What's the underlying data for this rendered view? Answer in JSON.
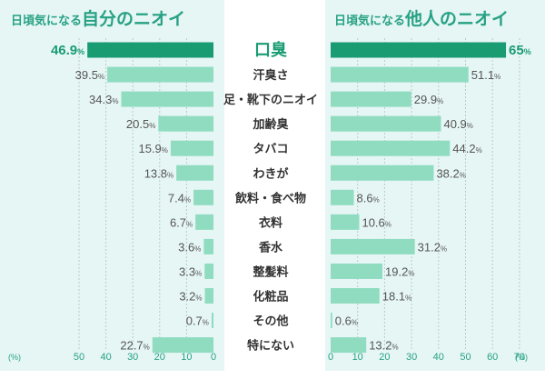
{
  "chart_data": [
    {
      "type": "bar",
      "orientation": "horizontal",
      "direction": "right-to-left",
      "title_prefix": "日頃気になる",
      "title_main": "自分のニオイ",
      "categories": [
        "口臭",
        "汗臭さ",
        "足・靴下のニオイ",
        "加齢臭",
        "タバコ",
        "わきが",
        "飲料・食べ物",
        "衣料",
        "香水",
        "整髪料",
        "化粧品",
        "その他",
        "特にない"
      ],
      "values": [
        46.9,
        39.5,
        34.3,
        20.5,
        15.9,
        13.8,
        7.4,
        6.7,
        3.6,
        3.3,
        3.2,
        0.7,
        22.7
      ],
      "value_suffix": "%",
      "xlim": [
        0,
        50
      ],
      "xticks": [
        "50",
        "40",
        "30",
        "20",
        "10",
        "0"
      ],
      "unit_label": "(%)",
      "grid": true,
      "highlight_index": 0,
      "highlight_color": "#1a9c73",
      "bar_color": "#8fdcc1"
    },
    {
      "type": "bar",
      "orientation": "horizontal",
      "direction": "left-to-right",
      "title_prefix": "日頃気になる",
      "title_main": "他人のニオイ",
      "categories": [
        "口臭",
        "汗臭さ",
        "足・靴下のニオイ",
        "加齢臭",
        "タバコ",
        "わきが",
        "飲料・食べ物",
        "衣料",
        "香水",
        "整髪料",
        "化粧品",
        "その他",
        "特にない"
      ],
      "values": [
        65,
        51.1,
        29.9,
        40.9,
        44.2,
        38.2,
        8.6,
        10.6,
        31.2,
        19.2,
        18.1,
        0.6,
        13.2
      ],
      "value_suffix": "%",
      "xlim": [
        0,
        70
      ],
      "xticks": [
        "0",
        "10",
        "20",
        "30",
        "40",
        "50",
        "60",
        "70"
      ],
      "unit_label": "(%)",
      "grid": true,
      "highlight_index": 0,
      "highlight_color": "#1a9c73",
      "bar_color": "#8fdcc1"
    }
  ],
  "colors": {
    "accent": "#27a184",
    "highlight": "#1a9c73",
    "bar": "#8fdcc1",
    "panel_background": "#e6f6f5"
  }
}
